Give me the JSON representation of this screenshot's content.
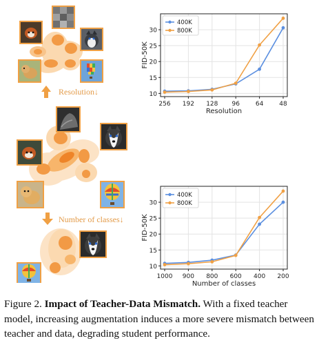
{
  "figure": {
    "arrow_label_1": "Resolution↓",
    "arrow_label_2": "Number of classes↓",
    "caption_prefix": "Figure 2.",
    "caption_title": "Impact of Teacher-Data Mismatch.",
    "caption_body": "With a fixed teacher model, increasing augmentation induces a more severe mismatch between teacher and data, degrading student performance.",
    "icons": [
      "red-panda-photo",
      "dog-photo",
      "husky-photo",
      "hot-air-balloon-photo",
      "cat-photo",
      "pixelated-image"
    ],
    "colors": {
      "orange": "#F0A044",
      "blue": "#5B8FE0",
      "blob_dark": "#F4A35A",
      "blob_light": "#FBD9B0"
    }
  },
  "chart_data": [
    {
      "type": "line",
      "xlabel": "Resolution",
      "ylabel": "FID-50K",
      "categories": [
        "256",
        "192",
        "128",
        "96",
        "64",
        "48"
      ],
      "ylim": [
        9,
        35
      ],
      "yticks": [
        10,
        15,
        20,
        25,
        30
      ],
      "legend_position": "top-left",
      "grid": true,
      "series": [
        {
          "name": "400K",
          "color": "#5B8FE0",
          "values": [
            10.7,
            10.8,
            11.3,
            13.0,
            17.6,
            30.6
          ]
        },
        {
          "name": "800K",
          "color": "#F0A044",
          "values": [
            10.4,
            10.6,
            11.1,
            13.2,
            25.2,
            33.6
          ]
        }
      ]
    },
    {
      "type": "line",
      "xlabel": "Number of classes",
      "ylabel": "FID-50K",
      "categories": [
        "1000",
        "900",
        "800",
        "600",
        "400",
        "200"
      ],
      "ylim": [
        9,
        35
      ],
      "yticks": [
        10,
        15,
        20,
        25,
        30
      ],
      "legend_position": "top-left",
      "grid": true,
      "series": [
        {
          "name": "400K",
          "color": "#5B8FE0",
          "values": [
            10.8,
            11.1,
            11.8,
            13.4,
            23.1,
            30.0
          ]
        },
        {
          "name": "800K",
          "color": "#F0A044",
          "values": [
            10.4,
            10.7,
            11.3,
            13.3,
            25.2,
            33.5
          ]
        }
      ]
    }
  ]
}
